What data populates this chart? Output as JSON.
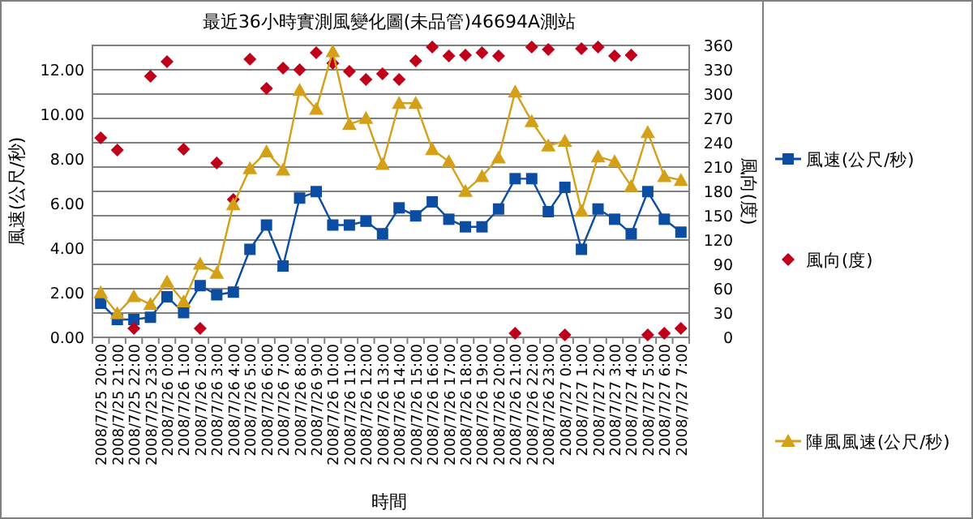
{
  "chart_data": {
    "type": "line",
    "title": "最近36小時實測風變化圖(未品管)46694A測站",
    "xlabel": "時間",
    "ylabel": "風速(公尺/秒)",
    "y2label": "風向(度)",
    "categories": [
      "2008/7/25 20:00",
      "2008/7/25 21:00",
      "2008/7/25 22:00",
      "2008/7/25 23:00",
      "2008/7/26 0:00",
      "2008/7/26 1:00",
      "2008/7/26 2:00",
      "2008/7/26 3:00",
      "2008/7/26 4:00",
      "2008/7/26 5:00",
      "2008/7/26 6:00",
      "2008/7/26 7:00",
      "2008/7/26 8:00",
      "2008/7/26 9:00",
      "2008/7/26 10:00",
      "2008/7/26 11:00",
      "2008/7/26 12:00",
      "2008/7/26 13:00",
      "2008/7/26 14:00",
      "2008/7/26 15:00",
      "2008/7/26 16:00",
      "2008/7/26 17:00",
      "2008/7/26 18:00",
      "2008/7/26 19:00",
      "2008/7/26 20:00",
      "2008/7/26 21:00",
      "2008/7/26 22:00",
      "2008/7/26 23:00",
      "2008/7/27 0:00",
      "2008/7/27 1:00",
      "2008/7/27 2:00",
      "2008/7/27 3:00",
      "2008/7/27 4:00",
      "2008/7/27 5:00",
      "2008/7/27 6:00",
      "2008/7/27 7:00"
    ],
    "series": [
      {
        "name": "風速(公尺/秒)",
        "marker": "square",
        "color": "#0b4da2",
        "values": [
          1.53,
          0.8,
          0.8,
          0.9,
          1.82,
          1.11,
          2.32,
          1.91,
          2.03,
          3.95,
          5.04,
          3.2,
          6.25,
          6.54,
          5.04,
          5.04,
          5.21,
          4.65,
          5.81,
          5.45,
          6.08,
          5.3,
          4.96,
          4.96,
          5.76,
          7.12,
          7.12,
          5.64,
          6.73,
          3.95,
          5.76,
          5.3,
          4.65,
          6.54,
          5.3,
          4.72
        ]
      },
      {
        "name": "風向(度)",
        "type": "scatter",
        "axis": "y2",
        "marker": "diamond",
        "color": "#c0001a",
        "values": [
          246,
          231,
          11,
          322,
          340,
          232,
          11,
          215,
          170,
          343,
          307,
          332,
          330,
          351,
          338,
          328,
          318,
          325,
          318,
          341,
          358,
          347,
          348,
          351,
          347,
          5,
          358,
          355,
          3,
          356,
          358,
          347,
          348,
          3,
          5,
          11
        ]
      },
      {
        "name": "陣風風速(公尺/秒)",
        "marker": "triangle",
        "color": "#d4a017",
        "values": [
          2.01,
          1.07,
          1.84,
          1.48,
          2.49,
          1.6,
          3.29,
          2.88,
          5.96,
          7.58,
          8.33,
          7.51,
          11.09,
          10.24,
          12.83,
          9.56,
          9.83,
          7.77,
          10.51,
          10.51,
          8.43,
          7.89,
          6.56,
          7.22,
          8.06,
          11.02,
          9.69,
          8.6,
          8.81,
          5.67,
          8.11,
          7.89,
          6.78,
          9.2,
          7.22,
          7.05
        ]
      }
    ],
    "ylim": [
      0,
      13.1
    ],
    "yticks": [
      {
        "value": 0,
        "label": "0.00"
      },
      {
        "value": 2,
        "label": "2.00"
      },
      {
        "value": 4,
        "label": "4.00"
      },
      {
        "value": 6,
        "label": "6.00"
      },
      {
        "value": 8,
        "label": "8.00"
      },
      {
        "value": 10,
        "label": "10.00"
      },
      {
        "value": 12,
        "label": "12.00"
      }
    ],
    "y2lim": [
      0,
      360
    ],
    "y2ticks": [
      0,
      30,
      60,
      90,
      120,
      150,
      180,
      210,
      240,
      270,
      300,
      330,
      360
    ],
    "grid": "y2",
    "legend": "right"
  }
}
